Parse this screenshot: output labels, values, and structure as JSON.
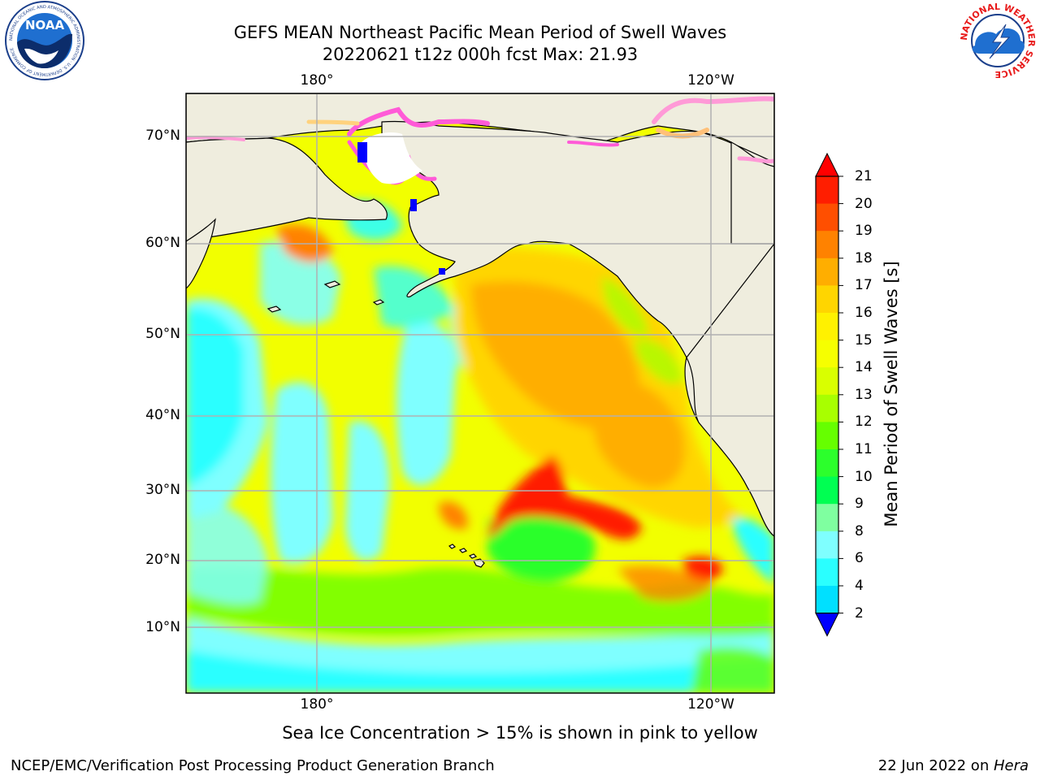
{
  "title_line1": "GEFS MEAN Northeast Pacific Mean Period of Swell Waves",
  "title_line2": "20220621 t12z 000h fcst   Max: 21.93",
  "lat_labels": [
    "70°N",
    "60°N",
    "50°N",
    "40°N",
    "30°N",
    "20°N",
    "10°N"
  ],
  "lon_labels_top": [
    "180°",
    "120°W"
  ],
  "lon_labels_bottom": [
    "180°",
    "120°W"
  ],
  "colorbar": {
    "label": "Mean Period of Swell Waves [s]",
    "ticks": [
      "21",
      "20",
      "19",
      "18",
      "17",
      "16",
      "15",
      "14",
      "13",
      "12",
      "11",
      "10",
      "9",
      "8",
      "6",
      "4",
      "2"
    ],
    "colors": [
      "#ff1e00",
      "#ff4f00",
      "#ff8200",
      "#ffae00",
      "#ffd500",
      "#fff100",
      "#f6ff00",
      "#d9ff00",
      "#a8ff00",
      "#66ff00",
      "#2cff2c",
      "#00ff52",
      "#7fffa0",
      "#7fffff",
      "#2affff",
      "#00e0ff",
      "#006fff"
    ],
    "under_color": "#0000ff",
    "over_color": "#ff0000"
  },
  "sea_ice_note": "Sea Ice Concentration > 15% is shown in pink to yellow",
  "credit_left": "NCEP/EMC/Verification Post Processing Product Generation Branch",
  "credit_right_date": "22 Jun 2022 on ",
  "credit_right_host": "Hera",
  "logo_left": {
    "name": "noaa-logo",
    "text": "NOAA",
    "ring_text": "NATIONAL OCEANIC AND ATMOSPHERIC ADMINISTRATION · U.S. DEPARTMENT OF COMMERCE"
  },
  "logo_right": {
    "name": "nws-logo",
    "ring_text": "NATIONAL WEATHER SERVICE"
  }
}
